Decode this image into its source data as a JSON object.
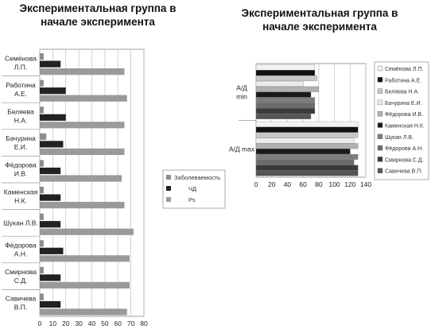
{
  "chart_data": [
    {
      "type": "bar",
      "orientation": "horizontal",
      "title": "Экспериментальная группа в начале эксперимента",
      "title_lines": [
        "Экспериментальная группа в",
        "начале эксперимента"
      ],
      "categories": [
        [
          "Семёнова",
          "Л.П."
        ],
        [
          "Работина",
          "А.Е."
        ],
        [
          "Беляева",
          "Н.А."
        ],
        [
          "Бачурина",
          "Е.И."
        ],
        [
          "Фёдорова",
          "И.В."
        ],
        [
          "Каменская",
          "Н.К."
        ],
        [
          "Шукан Л.В."
        ],
        [
          "Фёдорова",
          "А.Н."
        ],
        [
          "Смирнова",
          "С.Д."
        ],
        [
          "Савичева",
          "В.П."
        ]
      ],
      "series": [
        {
          "name": "Заболеваемость",
          "color": "#8c8c8c",
          "values": [
            3,
            3,
            3,
            5,
            3,
            3,
            3,
            3,
            3,
            3
          ]
        },
        {
          "name": "ЧД",
          "color": "#222222",
          "values": [
            16,
            20,
            20,
            18,
            16,
            16,
            16,
            18,
            16,
            16
          ]
        },
        {
          "name": "Ps",
          "color": "#9a9a9a",
          "values": [
            65,
            67,
            65,
            65,
            63,
            65,
            72,
            69,
            69,
            67
          ]
        }
      ],
      "xlim": [
        0,
        80
      ],
      "xticks": [
        "0",
        "10",
        "20",
        "30",
        "40",
        "50",
        "60",
        "70",
        "80"
      ],
      "legend_position": "right",
      "grid": true
    },
    {
      "type": "bar",
      "orientation": "horizontal",
      "title": "Экспериментальная группа в начале эксперимента",
      "title_lines": [
        "Экспериментальная группа в",
        "начале эксперимента"
      ],
      "categories": [
        [
          "А/Д",
          "min"
        ],
        [
          "А/Д max"
        ]
      ],
      "series": [
        {
          "name": "Семёнова Л.П.",
          "color": "#f2f2f2",
          "values": [
            75,
            130
          ]
        },
        {
          "name": "Работина А.Е.",
          "color": "#111111",
          "values": [
            75,
            130
          ]
        },
        {
          "name": "Беляева Н.А.",
          "color": "#c8c8c8",
          "values": [
            78,
            130
          ]
        },
        {
          "name": "Бачурина Е.И.",
          "color": "#ececec",
          "values": [
            60,
            125
          ]
        },
        {
          "name": "Фёдорова И.В.",
          "color": "#b0b0b0",
          "values": [
            80,
            130
          ]
        },
        {
          "name": "Каменская Н.К.",
          "color": "#1a1a1a",
          "values": [
            70,
            120
          ]
        },
        {
          "name": "Шукан Л.В.",
          "color": "#7d7d7d",
          "values": [
            75,
            130
          ]
        },
        {
          "name": "Фёдорова А.Н.",
          "color": "#6b6b6b",
          "values": [
            75,
            125
          ]
        },
        {
          "name": "Смирнова С.Д.",
          "color": "#3a3a3a",
          "values": [
            75,
            130
          ]
        },
        {
          "name": "Савичева В.П.",
          "color": "#555555",
          "values": [
            70,
            130
          ]
        }
      ],
      "xlim": [
        0,
        140
      ],
      "xticks": [
        "0",
        "20",
        "40",
        "60",
        "80",
        "100",
        "120",
        "140"
      ],
      "legend_position": "right",
      "grid": true
    }
  ]
}
